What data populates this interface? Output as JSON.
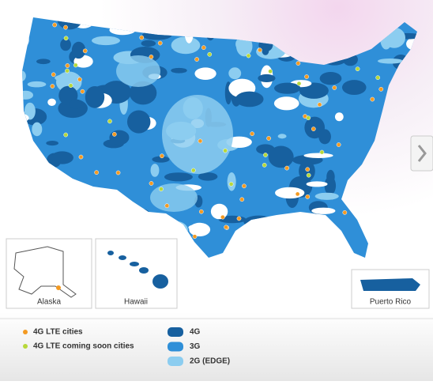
{
  "insets": [
    {
      "label": "Alaska"
    },
    {
      "label": "Hawaii"
    },
    {
      "label": "Puerto Rico"
    }
  ],
  "legend": {
    "cities": [
      {
        "label": "4G LTE cities",
        "color": "#f39a22"
      },
      {
        "label": "4G LTE coming soon cities",
        "color": "#b7d83a"
      }
    ],
    "coverage": [
      {
        "label": "4G",
        "color": "#17609f"
      },
      {
        "label": "3G",
        "color": "#2f8fd8"
      },
      {
        "label": "2G (EDGE)",
        "color": "#8ccdf0"
      }
    ]
  }
}
